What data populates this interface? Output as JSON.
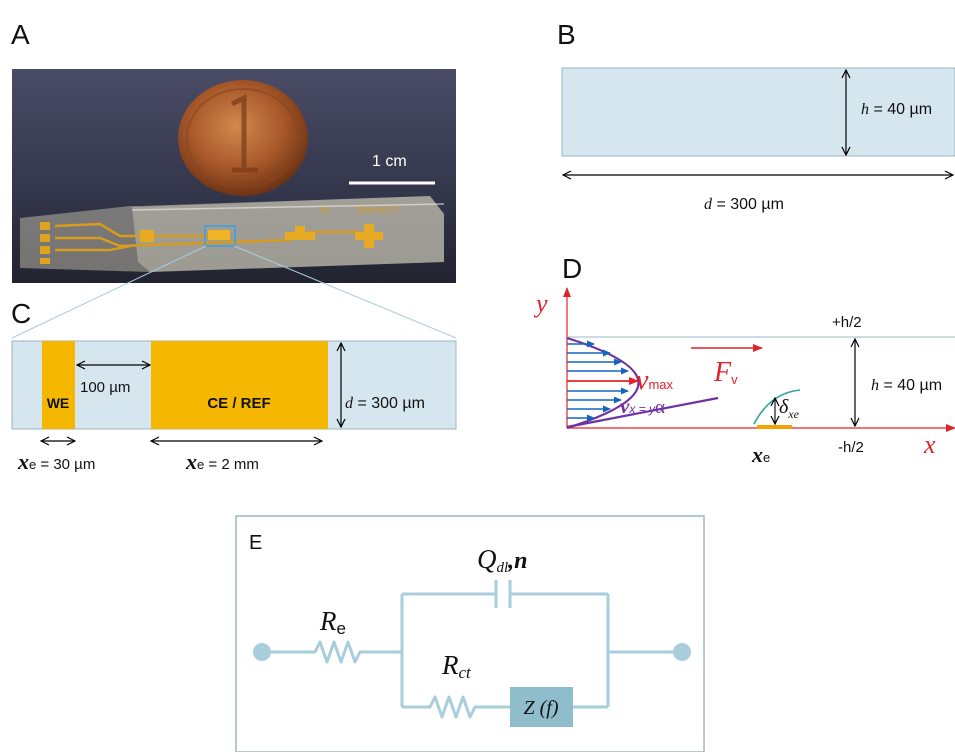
{
  "panels": {
    "A": {
      "letter": "A",
      "scale_bar_label": "1 cm",
      "chip_text_1": "VA",
      "chip_text_2": "1 CHANNEL"
    },
    "B": {
      "letter": "B",
      "height_var": "h",
      "height_value": " = 40 µm",
      "width_var": "d",
      "width_value": " = 300 µm"
    },
    "C": {
      "letter": "C",
      "we_label": "WE",
      "ce_label": "CE / REF",
      "gap_label": "100 µm",
      "width_var": "d",
      "width_value": " = 300 µm",
      "xe_symbol": "x",
      "xe_sub": "e",
      "xe_we_value": " = 30 µm",
      "xe_ce_value": " = 2 mm"
    },
    "D": {
      "letter": "D",
      "y_axis": "y",
      "x_axis": "x",
      "top_label": "+h/2",
      "bottom_label": "-h/2",
      "height_var": "h",
      "height_value": " = 40 µm",
      "vmax_v": "v",
      "vmax_sub": "max",
      "fv_F": "F",
      "fv_sub": "v",
      "vx_v": "v",
      "vx_sub": "x = y",
      "vx_alpha": "α",
      "delta": "δ",
      "delta_sub": "xe",
      "xe_symbol": "x",
      "xe_sub": "e"
    },
    "E": {
      "letter": "E",
      "qdl_Q": "Q",
      "qdl_sub": "dl",
      "qdl_n": ",n",
      "re_R": "R",
      "re_sub": "e",
      "rct_R": "R",
      "rct_sub": "ct",
      "z_label": "Z (f)"
    }
  },
  "colors": {
    "channel": "#d5e6ee",
    "gold": "#f5b700",
    "red_axis": "#e0242b",
    "blue_arrow": "#1565c0",
    "purple": "#7030a0",
    "green": "#2aa59a",
    "circuit": "#a9cedb",
    "circuit_box": "#8fbdcc"
  }
}
